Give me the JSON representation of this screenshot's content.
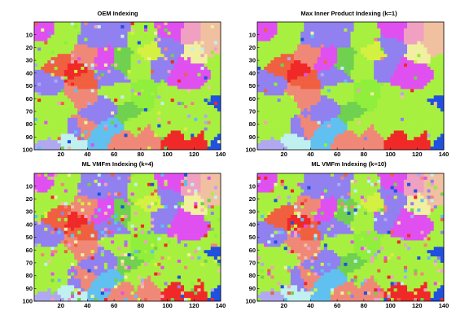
{
  "chart_data": [
    {
      "type": "heatmap",
      "title": "OEM Indexing",
      "xlabel": "",
      "ylabel": "",
      "xlim": [
        0,
        140
      ],
      "ylim": [
        0,
        100
      ],
      "x_ticks": [
        "20",
        "40",
        "60",
        "80",
        "100",
        "120",
        "140"
      ],
      "y_ticks": [
        "10",
        "20",
        "30",
        "40",
        "50",
        "60",
        "70",
        "80",
        "90",
        "100"
      ],
      "y_reversed": true,
      "grid": false,
      "noise": "moderate",
      "values": "per-pixel orientation map (grain-color image, 140 x 100)"
    },
    {
      "type": "heatmap",
      "title": "Max Inner Product Indexing (k=1)",
      "xlabel": "",
      "ylabel": "",
      "xlim": [
        0,
        140
      ],
      "ylim": [
        0,
        100
      ],
      "x_ticks": [
        "20",
        "40",
        "60",
        "80",
        "100",
        "120",
        "140"
      ],
      "y_ticks": [
        "10",
        "20",
        "30",
        "40",
        "50",
        "60",
        "70",
        "80",
        "90",
        "100"
      ],
      "y_reversed": true,
      "grid": false,
      "noise": "low",
      "values": "per-pixel orientation map (grain-color image, 140 x 100)"
    },
    {
      "type": "heatmap",
      "title": "ML VMFm Indexing (k=4)",
      "xlabel": "",
      "ylabel": "",
      "xlim": [
        0,
        140
      ],
      "ylim": [
        0,
        100
      ],
      "x_ticks": [
        "20",
        "40",
        "60",
        "80",
        "100",
        "120",
        "140"
      ],
      "y_ticks": [
        "10",
        "20",
        "30",
        "40",
        "50",
        "60",
        "70",
        "80",
        "90",
        "100"
      ],
      "y_reversed": true,
      "grid": false,
      "noise": "high",
      "values": "per-pixel orientation map (grain-color image, 140 x 100)"
    },
    {
      "type": "heatmap",
      "title": "ML VMFm Indexing (k=10)",
      "xlabel": "",
      "ylabel": "",
      "xlim": [
        0,
        140
      ],
      "ylim": [
        0,
        100
      ],
      "x_ticks": [
        "20",
        "40",
        "60",
        "80",
        "100",
        "120",
        "140"
      ],
      "y_ticks": [
        "10",
        "20",
        "30",
        "40",
        "50",
        "60",
        "70",
        "80",
        "90",
        "100"
      ],
      "y_reversed": true,
      "grid": false,
      "noise": "high",
      "values": "per-pixel orientation map (grain-color image, 140 x 100)"
    }
  ],
  "colors": {
    "lime": "#a8f040",
    "bright_lime": "#90ee3c",
    "yellow_green": "#d4f040",
    "violet": "#9080f0",
    "magenta": "#e050f0",
    "salmon": "#f08878",
    "orange_red": "#f06040",
    "red": "#f02828",
    "blue": "#2050e0",
    "pink": "#f0a0c0",
    "sky": "#60c0f0",
    "pale_yellow": "#f0f0a0",
    "peach": "#f0c0a0",
    "cyan_white": "#c0f0f0",
    "dark_green": "#70d050",
    "light_violet": "#b0a8f0"
  }
}
